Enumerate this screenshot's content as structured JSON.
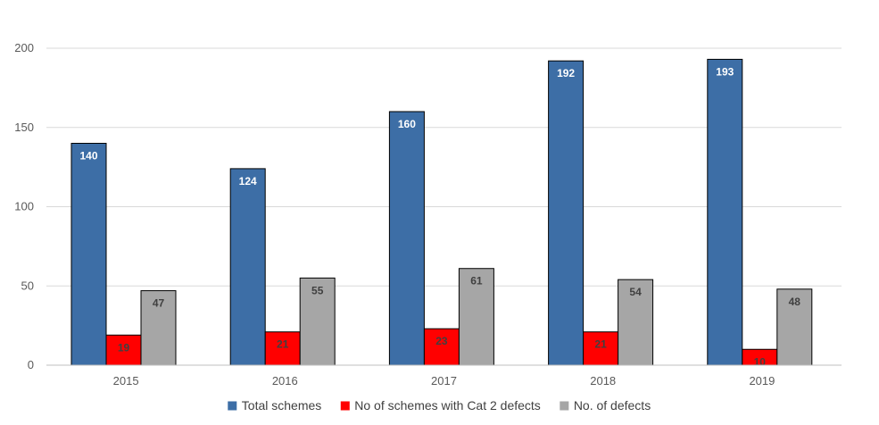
{
  "chart_data": {
    "type": "bar",
    "title": "",
    "xlabel": "",
    "ylabel": "",
    "categories": [
      "2015",
      "2016",
      "2017",
      "2018",
      "2019"
    ],
    "series": [
      {
        "name": "Total schemes",
        "color": "#3d6ea6",
        "label_color": "#ffffff",
        "values": [
          140,
          124,
          160,
          192,
          193
        ]
      },
      {
        "name": "No of schemes with Cat 2 defects",
        "color": "#ff0000",
        "label_color": "#404040",
        "values": [
          19,
          21,
          23,
          21,
          10
        ]
      },
      {
        "name": "No. of defects",
        "color": "#a6a6a6",
        "label_color": "#404040",
        "values": [
          47,
          55,
          61,
          54,
          48
        ]
      }
    ],
    "ylim": [
      0,
      200
    ],
    "yticks": [
      0,
      50,
      100,
      150,
      200
    ],
    "grid": true,
    "legend_position": "bottom"
  }
}
